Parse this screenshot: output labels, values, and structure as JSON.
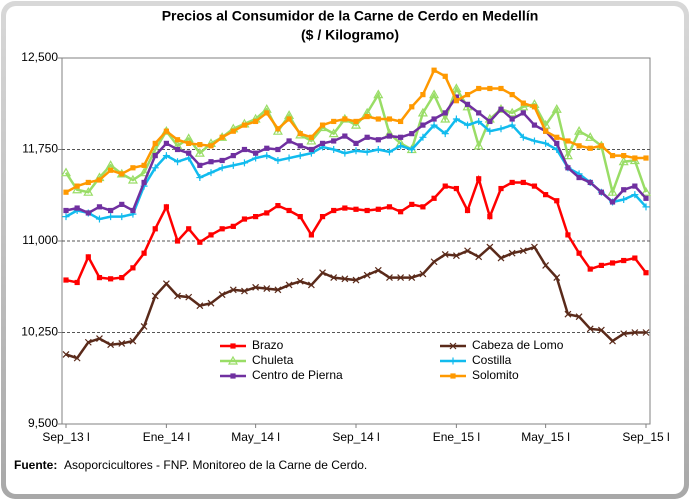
{
  "chart_data": {
    "type": "line",
    "title": "Precios al Consumidor de la Carne de Cerdo en Medellín",
    "subtitle": "($ / Kilogramo)",
    "categories": [
      "Sep_13 l",
      null,
      null,
      null,
      null,
      null,
      null,
      null,
      null,
      "Ene_14 l",
      null,
      null,
      null,
      null,
      null,
      null,
      null,
      "May_14 l",
      null,
      null,
      null,
      null,
      null,
      null,
      null,
      null,
      "Sep_14 l",
      null,
      null,
      null,
      null,
      null,
      null,
      null,
      null,
      "Ene_15 l",
      null,
      null,
      null,
      null,
      null,
      null,
      null,
      "May_15 l",
      null,
      null,
      null,
      null,
      null,
      null,
      null,
      null,
      "Sep_15 l"
    ],
    "ylim": [
      9500,
      12500
    ],
    "yticks": [
      {
        "value": 9500,
        "label": "9,500"
      },
      {
        "value": 10250,
        "label": "10,250"
      },
      {
        "value": 11000,
        "label": "11,000"
      },
      {
        "value": 11750,
        "label": "11,750"
      },
      {
        "value": 12500,
        "label": "12,500"
      }
    ],
    "grid": true,
    "series": [
      {
        "name": "Brazo",
        "color": "#ff0000",
        "marker": "square",
        "values": [
          10680,
          10660,
          10870,
          10700,
          10690,
          10700,
          10780,
          10900,
          11100,
          11280,
          11000,
          11100,
          10990,
          11050,
          11100,
          11120,
          11180,
          11200,
          11230,
          11290,
          11250,
          11200,
          11050,
          11200,
          11250,
          11270,
          11260,
          11250,
          11260,
          11280,
          11240,
          11300,
          11280,
          11350,
          11450,
          11430,
          11250,
          11510,
          11200,
          11430,
          11480,
          11480,
          11450,
          11380,
          11330,
          11050,
          10900,
          10770,
          10800,
          10820,
          10840,
          10860,
          10740
        ]
      },
      {
        "name": "Cabeza de Lomo",
        "color": "#5a2a1a",
        "marker": "x",
        "values": [
          10070,
          10040,
          10170,
          10200,
          10150,
          10160,
          10180,
          10300,
          10550,
          10650,
          10550,
          10540,
          10470,
          10490,
          10560,
          10600,
          10590,
          10620,
          10610,
          10600,
          10640,
          10670,
          10640,
          10740,
          10700,
          10690,
          10680,
          10720,
          10760,
          10700,
          10700,
          10700,
          10730,
          10830,
          10890,
          10880,
          10920,
          10870,
          10950,
          10860,
          10900,
          10920,
          10950,
          10800,
          10700,
          10400,
          10380,
          10280,
          10270,
          10180,
          10240,
          10250,
          10250
        ]
      },
      {
        "name": "Chuleta",
        "color": "#99dd66",
        "marker": "triangle",
        "values": [
          11560,
          11420,
          11400,
          11520,
          11620,
          11550,
          11500,
          11560,
          11750,
          11900,
          11780,
          11840,
          11720,
          11800,
          11850,
          11920,
          11960,
          12000,
          12080,
          11900,
          12030,
          11870,
          11820,
          11930,
          11880,
          12000,
          11950,
          12050,
          12200,
          11880,
          11800,
          11750,
          12050,
          12200,
          12000,
          12250,
          12100,
          11780,
          12000,
          12080,
          12050,
          12100,
          12120,
          11950,
          12080,
          11700,
          11900,
          11850,
          11780,
          11400,
          11650,
          11660,
          11400
        ]
      },
      {
        "name": "Costilla",
        "color": "#11bbee",
        "marker": "plus",
        "values": [
          11200,
          11250,
          11230,
          11180,
          11200,
          11200,
          11220,
          11450,
          11600,
          11700,
          11650,
          11680,
          11520,
          11560,
          11600,
          11620,
          11640,
          11680,
          11700,
          11660,
          11680,
          11700,
          11720,
          11770,
          11750,
          11720,
          11740,
          11730,
          11750,
          11730,
          11780,
          11750,
          11850,
          11950,
          11880,
          12000,
          11950,
          11980,
          11900,
          11920,
          11950,
          11850,
          11820,
          11800,
          11750,
          11600,
          11550,
          11480,
          11400,
          11320,
          11340,
          11380,
          11280
        ]
      },
      {
        "name": "Centro de Pierna",
        "color": "#7030a0",
        "marker": "square",
        "values": [
          11250,
          11270,
          11230,
          11280,
          11250,
          11300,
          11250,
          11480,
          11700,
          11800,
          11750,
          11720,
          11620,
          11650,
          11660,
          11700,
          11750,
          11720,
          11760,
          11750,
          11820,
          11780,
          11750,
          11800,
          11820,
          11860,
          11800,
          11850,
          11830,
          11860,
          11850,
          11880,
          11950,
          12000,
          12050,
          12180,
          12120,
          12050,
          11980,
          12080,
          12000,
          12050,
          11950,
          11900,
          11800,
          11600,
          11520,
          11480,
          11400,
          11320,
          11420,
          11450,
          11350
        ]
      },
      {
        "name": "Solomito",
        "color": "#ff9900",
        "marker": "square",
        "values": [
          11400,
          11450,
          11480,
          11500,
          11580,
          11550,
          11600,
          11620,
          11800,
          11900,
          11830,
          11800,
          11790,
          11780,
          11850,
          11900,
          11950,
          11980,
          12050,
          11920,
          12000,
          11880,
          11850,
          11950,
          11980,
          12000,
          11980,
          12020,
          12000,
          12000,
          11980,
          12100,
          12200,
          12400,
          12350,
          12150,
          12200,
          12250,
          12250,
          12250,
          12200,
          12130,
          12100,
          11900,
          11850,
          11820,
          11780,
          11760,
          11780,
          11700,
          11700,
          11680,
          11680
        ]
      }
    ],
    "source_label": "Fuente:",
    "source_text": "Asoporcicultores - FNP. Monitoreo de la Carne de Cerdo."
  }
}
